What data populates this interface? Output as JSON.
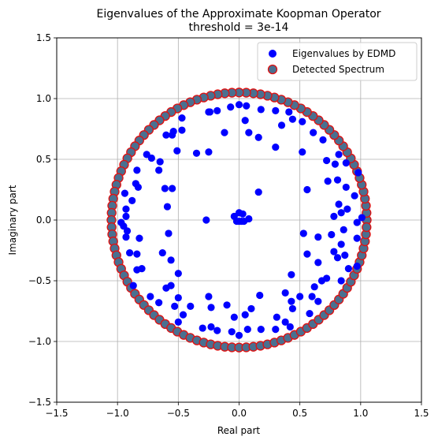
{
  "chart_data": {
    "type": "scatter",
    "title": "Eigenvalues of the Approximate Koopman Operator",
    "subtitle": "threshold = 3e-14",
    "xlabel": "Real part",
    "ylabel": "Imaginary part",
    "xlim": [
      -1.5,
      1.5
    ],
    "ylim": [
      -1.5,
      1.5
    ],
    "xticks": [
      "−1.5",
      "−1.0",
      "−0.5",
      "0.0",
      "0.5",
      "1.0",
      "1.5"
    ],
    "yticks": [
      "−1.5",
      "−1.0",
      "−0.5",
      "0.0",
      "0.5",
      "1.0",
      "1.5"
    ],
    "grid": true,
    "legend_position": "upper-right",
    "series": [
      {
        "name": "Eigenvalues by EDMD",
        "color": "#0000ff",
        "marker": "filled-circle",
        "points": [
          [
            0.0,
            0.95
          ],
          [
            0.06,
            0.94
          ],
          [
            -0.07,
            0.93
          ],
          [
            0.18,
            0.91
          ],
          [
            -0.18,
            0.9
          ],
          [
            0.3,
            0.9
          ],
          [
            -0.25,
            0.89
          ],
          [
            0.41,
            0.89
          ],
          [
            -0.47,
            0.84
          ],
          [
            0.52,
            0.81
          ],
          [
            0.44,
            0.83
          ],
          [
            0.05,
            0.82
          ],
          [
            0.35,
            0.78
          ],
          [
            -0.54,
            0.73
          ],
          [
            -0.47,
            0.74
          ],
          [
            0.61,
            0.72
          ],
          [
            -0.55,
            0.7
          ],
          [
            -0.6,
            0.7
          ],
          [
            0.69,
            0.66
          ],
          [
            -0.12,
            0.72
          ],
          [
            0.08,
            0.72
          ],
          [
            0.16,
            0.68
          ],
          [
            0.3,
            0.6
          ],
          [
            -0.51,
            0.57
          ],
          [
            0.52,
            0.56
          ],
          [
            0.82,
            0.54
          ],
          [
            -0.25,
            0.56
          ],
          [
            -0.35,
            0.55
          ],
          [
            -0.76,
            0.54
          ],
          [
            -0.72,
            0.51
          ],
          [
            0.72,
            0.49
          ],
          [
            -0.65,
            0.48
          ],
          [
            0.88,
            0.47
          ],
          [
            0.79,
            0.46
          ],
          [
            -0.84,
            0.41
          ],
          [
            -0.66,
            0.41
          ],
          [
            0.98,
            0.39
          ],
          [
            0.73,
            0.32
          ],
          [
            0.81,
            0.33
          ],
          [
            -0.85,
            0.3
          ],
          [
            -0.83,
            0.27
          ],
          [
            -0.61,
            0.26
          ],
          [
            -0.55,
            0.26
          ],
          [
            0.88,
            0.27
          ],
          [
            0.56,
            0.25
          ],
          [
            0.16,
            0.23
          ],
          [
            -0.94,
            0.22
          ],
          [
            0.95,
            0.2
          ],
          [
            -0.88,
            0.16
          ],
          [
            -0.59,
            0.11
          ],
          [
            0.82,
            0.13
          ],
          [
            -0.93,
            0.09
          ],
          [
            0.89,
            0.09
          ],
          [
            0.84,
            0.06
          ],
          [
            -0.93,
            0.03
          ],
          [
            0.78,
            0.03
          ],
          [
            1.01,
            0.02
          ],
          [
            -0.97,
            -0.02
          ],
          [
            -0.27,
            0.0
          ],
          [
            0.08,
            0.01
          ],
          [
            0.03,
            0.05
          ],
          [
            -0.04,
            0.03
          ],
          [
            -0.02,
            -0.01
          ],
          [
            0.0,
            -0.01
          ],
          [
            0.02,
            -0.01
          ],
          [
            0.04,
            -0.01
          ],
          [
            0.0,
            0.06
          ],
          [
            -0.95,
            -0.05
          ],
          [
            0.97,
            -0.02
          ],
          [
            -0.92,
            -0.09
          ],
          [
            0.86,
            -0.08
          ],
          [
            0.76,
            -0.12
          ],
          [
            -0.93,
            -0.14
          ],
          [
            0.97,
            -0.15
          ],
          [
            -0.58,
            -0.11
          ],
          [
            0.53,
            -0.11
          ],
          [
            0.84,
            -0.2
          ],
          [
            -0.82,
            -0.15
          ],
          [
            0.65,
            -0.14
          ],
          [
            -0.9,
            -0.27
          ],
          [
            0.78,
            -0.26
          ],
          [
            -0.84,
            -0.28
          ],
          [
            0.81,
            -0.31
          ],
          [
            0.87,
            -0.29
          ],
          [
            -0.63,
            -0.27
          ],
          [
            0.56,
            -0.28
          ],
          [
            -0.56,
            -0.33
          ],
          [
            0.97,
            -0.38
          ],
          [
            0.65,
            -0.35
          ],
          [
            0.9,
            -0.4
          ],
          [
            -0.84,
            -0.41
          ],
          [
            -0.5,
            -0.44
          ],
          [
            0.43,
            -0.45
          ],
          [
            0.72,
            -0.48
          ],
          [
            0.68,
            -0.5
          ],
          [
            -0.56,
            -0.54
          ],
          [
            -0.6,
            -0.56
          ],
          [
            0.38,
            -0.6
          ],
          [
            0.84,
            -0.5
          ],
          [
            -0.87,
            -0.54
          ],
          [
            0.62,
            -0.55
          ],
          [
            -0.25,
            -0.63
          ],
          [
            0.17,
            -0.62
          ],
          [
            -0.73,
            -0.63
          ],
          [
            0.6,
            -0.63
          ],
          [
            -0.5,
            -0.64
          ],
          [
            0.5,
            -0.63
          ],
          [
            -0.8,
            -0.4
          ],
          [
            0.65,
            -0.67
          ],
          [
            0.43,
            -0.67
          ],
          [
            -0.66,
            -0.68
          ],
          [
            -0.1,
            -0.7
          ],
          [
            0.1,
            -0.73
          ],
          [
            -0.53,
            -0.71
          ],
          [
            -0.4,
            -0.71
          ],
          [
            0.44,
            -0.73
          ],
          [
            -0.23,
            -0.72
          ],
          [
            0.58,
            -0.77
          ],
          [
            -0.04,
            -0.8
          ],
          [
            0.05,
            -0.78
          ],
          [
            -0.46,
            -0.78
          ],
          [
            0.31,
            -0.8
          ],
          [
            -0.5,
            -0.84
          ],
          [
            0.38,
            -0.84
          ],
          [
            -0.23,
            -0.88
          ],
          [
            0.07,
            -0.9
          ],
          [
            0.18,
            -0.9
          ],
          [
            -0.3,
            -0.89
          ],
          [
            0.3,
            -0.9
          ],
          [
            0.42,
            -0.88
          ],
          [
            -0.06,
            -0.92
          ],
          [
            -0.18,
            -0.91
          ],
          [
            0.0,
            -0.95
          ],
          [
            -0.24,
            0.89
          ]
        ]
      },
      {
        "name": "Detected Spectrum",
        "color": "#4a7090",
        "edge_color": "#e01010",
        "marker": "filled-circle-outlined",
        "radius": 1.05,
        "count": 112
      }
    ]
  }
}
